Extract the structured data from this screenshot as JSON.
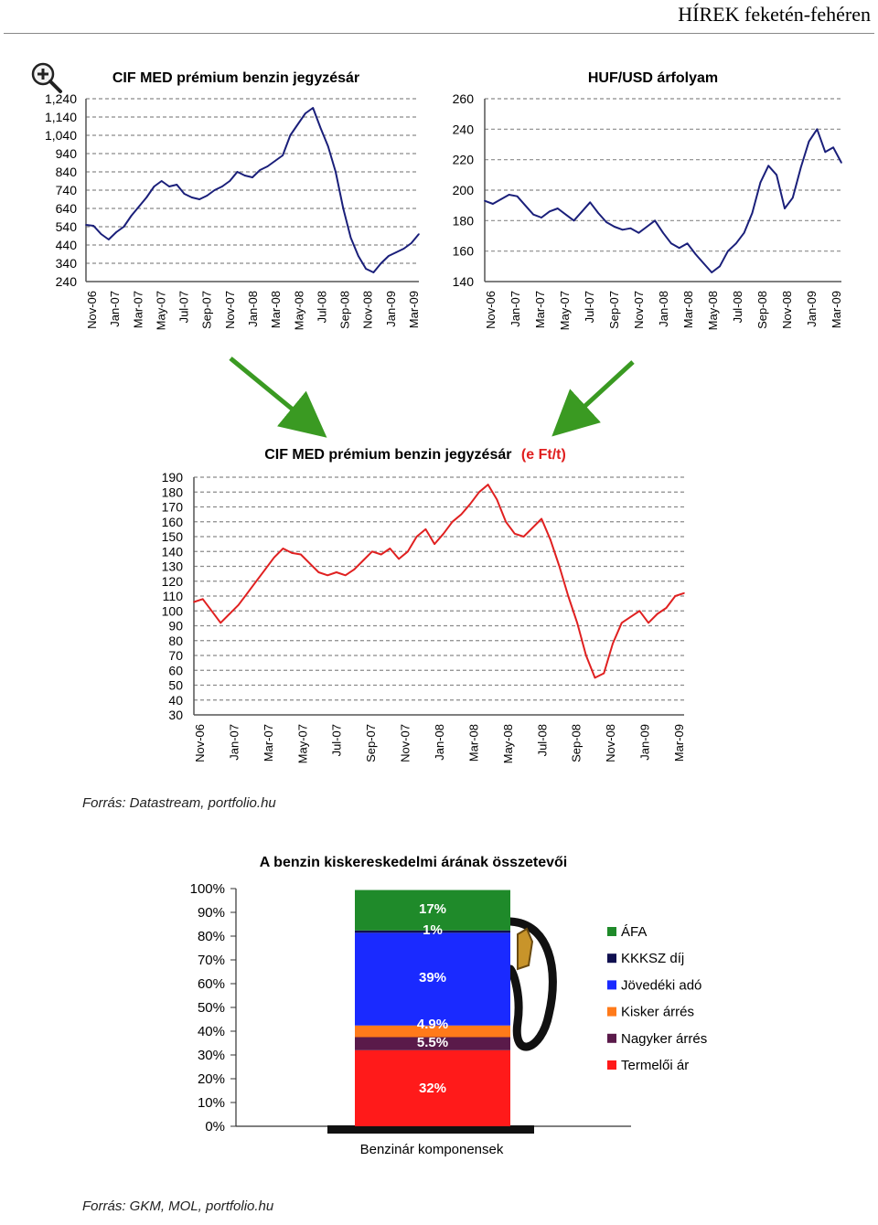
{
  "header": {
    "title": "HÍREK feketén-fehéren"
  },
  "colors": {
    "navy": "#1a1f7a",
    "red": "#e02020",
    "green_arrow": "#3a9a22",
    "grid": "#9a9a9a"
  },
  "icons": {
    "zoom": "magnifier-plus-icon"
  },
  "sources": {
    "top": "Forrás: Datastream, portfolio.hu",
    "bottom": "Forrás: GKM, MOL, portfolio.hu"
  },
  "chart_data": [
    {
      "type": "line",
      "title": "CIF MED prémium benzin jegyzésár",
      "x_ticks": [
        "Nov-06",
        "Jan-07",
        "Mar-07",
        "May-07",
        "Jul-07",
        "Sep-07",
        "Nov-07",
        "Jan-08",
        "Mar-08",
        "May-08",
        "Jul-08",
        "Sep-08",
        "Nov-08",
        "Jan-09",
        "Mar-09"
      ],
      "y_ticks": [
        "1,240",
        "1,140",
        "1,040",
        "940",
        "840",
        "740",
        "640",
        "540",
        "440",
        "340",
        "240"
      ],
      "ylim": [
        240,
        1240
      ],
      "color": "#1a1f7a",
      "series": [
        {
          "values": [
            550,
            545,
            500,
            470,
            510,
            540,
            600,
            650,
            700,
            760,
            790,
            760,
            770,
            720,
            700,
            690,
            710,
            740,
            760,
            790,
            840,
            820,
            810,
            850,
            870,
            900,
            930,
            1040,
            1100,
            1160,
            1190,
            1080,
            980,
            840,
            640,
            480,
            380,
            310,
            290,
            340,
            380,
            400,
            420,
            450,
            500
          ]
        }
      ]
    },
    {
      "type": "line",
      "title": "HUF/USD árfolyam",
      "x_ticks": [
        "Nov-06",
        "Jan-07",
        "Mar-07",
        "May-07",
        "Jul-07",
        "Sep-07",
        "Nov-07",
        "Jan-08",
        "Mar-08",
        "May-08",
        "Jul-08",
        "Sep-08",
        "Nov-08",
        "Jan-09",
        "Mar-09"
      ],
      "y_ticks": [
        "260",
        "240",
        "220",
        "200",
        "180",
        "160",
        "140"
      ],
      "ylim": [
        140,
        260
      ],
      "color": "#1a1f7a",
      "series": [
        {
          "values": [
            193,
            191,
            194,
            197,
            196,
            190,
            184,
            182,
            186,
            188,
            184,
            180,
            186,
            192,
            185,
            179,
            176,
            174,
            175,
            172,
            176,
            180,
            172,
            165,
            162,
            165,
            158,
            152,
            146,
            150,
            160,
            165,
            172,
            185,
            205,
            216,
            210,
            188,
            195,
            215,
            232,
            240,
            225,
            228,
            218
          ]
        }
      ]
    },
    {
      "type": "line",
      "title": "CIF MED prémium benzin jegyzésár",
      "title_suffix": "(e Ft/t)",
      "x_ticks": [
        "Nov-06",
        "Jan-07",
        "Mar-07",
        "May-07",
        "Jul-07",
        "Sep-07",
        "Nov-07",
        "Jan-08",
        "Mar-08",
        "May-08",
        "Jul-08",
        "Sep-08",
        "Nov-08",
        "Jan-09",
        "Mar-09"
      ],
      "y_ticks": [
        "190",
        "180",
        "170",
        "160",
        "150",
        "140",
        "130",
        "120",
        "110",
        "100",
        "90",
        "80",
        "70",
        "60",
        "50",
        "40",
        "30"
      ],
      "ylim": [
        30,
        190
      ],
      "color": "#e02020",
      "series": [
        {
          "values": [
            106,
            108,
            100,
            92,
            98,
            104,
            112,
            120,
            128,
            136,
            142,
            139,
            138,
            132,
            126,
            124,
            126,
            124,
            128,
            134,
            140,
            138,
            142,
            135,
            140,
            150,
            155,
            145,
            152,
            160,
            165,
            172,
            180,
            185,
            175,
            160,
            152,
            150,
            156,
            162,
            148,
            130,
            110,
            92,
            70,
            55,
            58,
            78,
            92,
            96,
            100,
            92,
            98,
            102,
            110,
            112
          ]
        }
      ]
    },
    {
      "type": "bar",
      "stacked": true,
      "title": "A benzin kiskereskedelmi árának összetevői",
      "xlabel": "Benzinár komponensek",
      "y_ticks": [
        "100%",
        "90%",
        "80%",
        "70%",
        "60%",
        "50%",
        "40%",
        "30%",
        "20%",
        "10%",
        "0%"
      ],
      "ylim": [
        0,
        100
      ],
      "series": [
        {
          "name": "Termelői ár",
          "value": 32,
          "label": "32%",
          "color": "#ff1a1a"
        },
        {
          "name": "Nagyker árrés",
          "value": 5.5,
          "label": "5.5%",
          "color": "#5a1a4a"
        },
        {
          "name": "Kisker árrés",
          "value": 4.9,
          "label": "4.9%",
          "color": "#ff7a1a"
        },
        {
          "name": "Jövedéki adó",
          "value": 39,
          "label": "39%",
          "color": "#1a2aff"
        },
        {
          "name": "KKKSZ díj",
          "value": 1,
          "label": "1%",
          "color": "#101050"
        },
        {
          "name": "ÁFA",
          "value": 17,
          "label": "17%",
          "color": "#1f8a2a"
        }
      ],
      "legend_order": [
        "ÁFA",
        "KKKSZ díj",
        "Jövedéki adó",
        "Kisker árrés",
        "Nagyker árrés",
        "Termelői ár"
      ]
    }
  ]
}
